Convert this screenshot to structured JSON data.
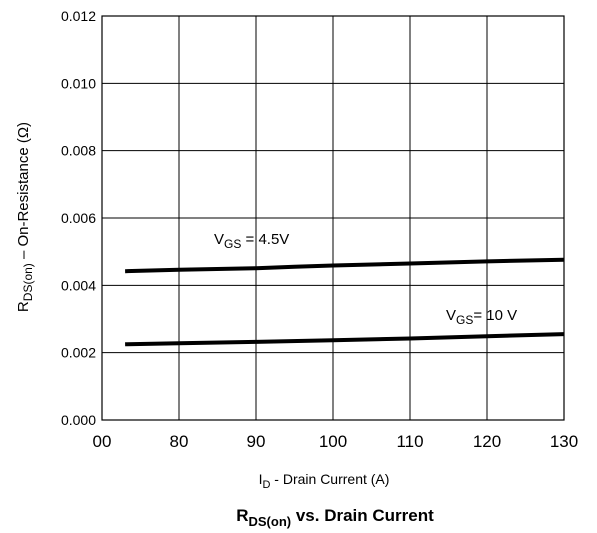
{
  "chart_data": {
    "type": "line",
    "title_main": "R",
    "title_sub": "DS(on)",
    "title_rest": " vs. Drain Current",
    "xlabel_main": "I",
    "xlabel_sub": "D",
    "xlabel_rest": "  -  Drain Current (A)",
    "ylabel_main": "R",
    "ylabel_sub": "DS(on)",
    "ylabel_rest": " – On-Resistance (Ω)",
    "xlim": [
      70,
      130
    ],
    "ylim": [
      0.0,
      0.012
    ],
    "x_ticks": [
      "00",
      "80",
      "90",
      "100",
      "110",
      "120",
      "130"
    ],
    "y_ticks": [
      "0.000",
      "0.002",
      "0.004",
      "0.006",
      "0.008",
      "0.010",
      "0.012"
    ],
    "grid": true,
    "series": [
      {
        "name": "VGS = 4.5V",
        "label_main": "V",
        "label_sub": "GS",
        "label_rest": " = 4.5V",
        "x": [
          73,
          80,
          90,
          95,
          100,
          110,
          120,
          130
        ],
        "y": [
          0.00442,
          0.00446,
          0.00451,
          0.00455,
          0.00459,
          0.00465,
          0.00471,
          0.00476
        ]
      },
      {
        "name": "VGS = 10 V",
        "label_main": "V",
        "label_sub": "GS",
        "label_rest": "= 10 V",
        "x": [
          73,
          80,
          90,
          100,
          110,
          120,
          130
        ],
        "y": [
          0.00225,
          0.00228,
          0.00232,
          0.00237,
          0.00242,
          0.00249,
          0.00255
        ]
      }
    ]
  }
}
